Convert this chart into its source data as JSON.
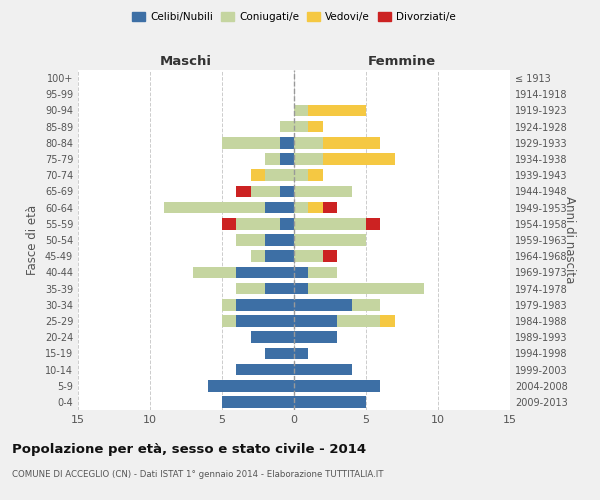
{
  "age_groups": [
    "0-4",
    "5-9",
    "10-14",
    "15-19",
    "20-24",
    "25-29",
    "30-34",
    "35-39",
    "40-44",
    "45-49",
    "50-54",
    "55-59",
    "60-64",
    "65-69",
    "70-74",
    "75-79",
    "80-84",
    "85-89",
    "90-94",
    "95-99",
    "100+"
  ],
  "birth_years": [
    "2009-2013",
    "2004-2008",
    "1999-2003",
    "1994-1998",
    "1989-1993",
    "1984-1988",
    "1979-1983",
    "1974-1978",
    "1969-1973",
    "1964-1968",
    "1959-1963",
    "1954-1958",
    "1949-1953",
    "1944-1948",
    "1939-1943",
    "1934-1938",
    "1929-1933",
    "1924-1928",
    "1919-1923",
    "1914-1918",
    "≤ 1913"
  ],
  "colors": {
    "celibe": "#3d6fa5",
    "coniugato": "#c5d5a0",
    "vedovo": "#f5c842",
    "divorziato": "#cc2222"
  },
  "maschi": {
    "celibe": [
      5,
      6,
      4,
      2,
      3,
      4,
      4,
      2,
      4,
      2,
      2,
      1,
      2,
      1,
      0,
      1,
      1,
      0,
      0,
      0,
      0
    ],
    "coniugato": [
      0,
      0,
      0,
      0,
      0,
      1,
      1,
      2,
      3,
      1,
      2,
      3,
      7,
      2,
      2,
      1,
      4,
      1,
      0,
      0,
      0
    ],
    "vedovo": [
      0,
      0,
      0,
      0,
      0,
      0,
      0,
      0,
      0,
      0,
      0,
      0,
      0,
      0,
      1,
      0,
      0,
      0,
      0,
      0,
      0
    ],
    "divorziato": [
      0,
      0,
      0,
      0,
      0,
      0,
      0,
      0,
      0,
      0,
      0,
      1,
      0,
      1,
      0,
      0,
      0,
      0,
      0,
      0,
      0
    ]
  },
  "femmine": {
    "nubile": [
      5,
      6,
      4,
      1,
      3,
      3,
      4,
      1,
      1,
      0,
      0,
      0,
      0,
      0,
      0,
      0,
      0,
      0,
      0,
      0,
      0
    ],
    "coniugata": [
      0,
      0,
      0,
      0,
      0,
      3,
      2,
      8,
      2,
      2,
      5,
      5,
      1,
      4,
      1,
      2,
      2,
      1,
      1,
      0,
      0
    ],
    "vedova": [
      0,
      0,
      0,
      0,
      0,
      1,
      0,
      0,
      0,
      0,
      0,
      0,
      1,
      0,
      1,
      5,
      4,
      1,
      4,
      0,
      0
    ],
    "divorziata": [
      0,
      0,
      0,
      0,
      0,
      0,
      0,
      0,
      0,
      1,
      0,
      1,
      1,
      0,
      0,
      0,
      0,
      0,
      0,
      0,
      0
    ]
  },
  "xlim": 15,
  "title": "Popolazione per età, sesso e stato civile - 2014",
  "subtitle": "COMUNE DI ACCEGLIO (CN) - Dati ISTAT 1° gennaio 2014 - Elaborazione TUTTITALIA.IT",
  "ylabel_left": "Fasce di età",
  "ylabel_right": "Anni di nascita",
  "xlabel_maschi": "Maschi",
  "xlabel_femmine": "Femmine",
  "legend_labels": [
    "Celibi/Nubili",
    "Coniugati/e",
    "Vedovi/e",
    "Divorziati/e"
  ],
  "bg_color": "#f0f0f0",
  "plot_bg": "#ffffff",
  "grid_color": "#cccccc"
}
